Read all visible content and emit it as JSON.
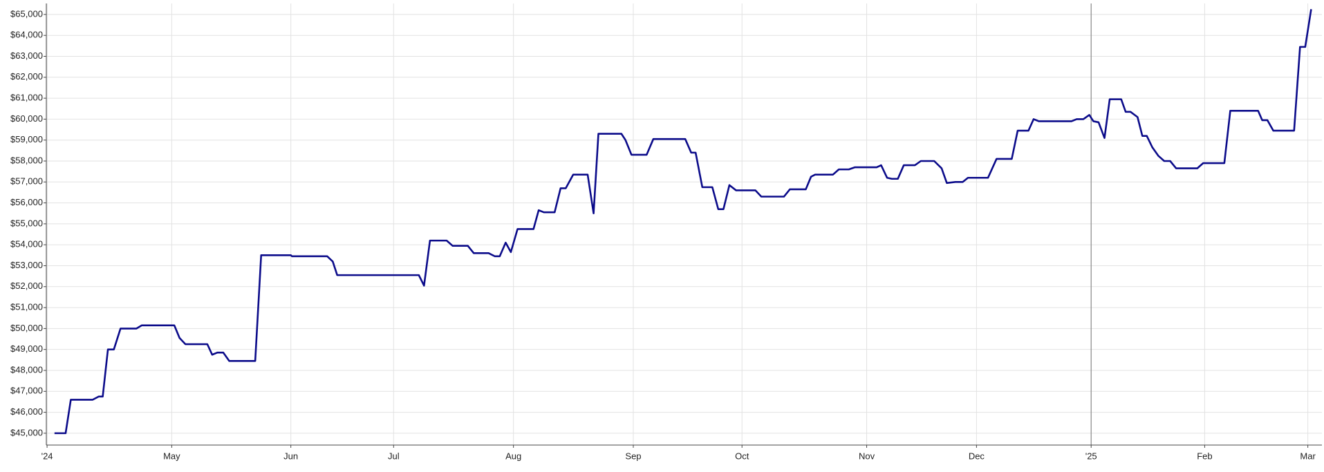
{
  "chart_data": {
    "type": "line",
    "color": "#0b0b8a",
    "grid": true,
    "xlim": [
      -0.2,
      343.6
    ],
    "xticks": [
      {
        "value": 0,
        "label": "'24"
      },
      {
        "value": 33.6,
        "label": "May"
      },
      {
        "value": 65.7,
        "label": "Jun"
      },
      {
        "value": 93.4,
        "label": "Jul"
      },
      {
        "value": 125.7,
        "label": "Aug"
      },
      {
        "value": 158,
        "label": "Sep"
      },
      {
        "value": 187.3,
        "label": "Oct"
      },
      {
        "value": 220.9,
        "label": "Nov"
      },
      {
        "value": 250.5,
        "label": "Dec"
      },
      {
        "value": 281.4,
        "label": "'25"
      },
      {
        "value": 312,
        "label": "Feb"
      },
      {
        "value": 339.8,
        "label": "Mar"
      }
    ],
    "vline": 281.4,
    "ylim": [
      44435,
      65525
    ],
    "yticks": [
      {
        "value": 45000,
        "label": "$45,000"
      },
      {
        "value": 46000,
        "label": "$46,000"
      },
      {
        "value": 47000,
        "label": "$47,000"
      },
      {
        "value": 48000,
        "label": "$48,000"
      },
      {
        "value": 49000,
        "label": "$49,000"
      },
      {
        "value": 50000,
        "label": "$50,000"
      },
      {
        "value": 51000,
        "label": "$51,000"
      },
      {
        "value": 52000,
        "label": "$52,000"
      },
      {
        "value": 53000,
        "label": "$53,000"
      },
      {
        "value": 54000,
        "label": "$54,000"
      },
      {
        "value": 55000,
        "label": "$55,000"
      },
      {
        "value": 56000,
        "label": "$56,000"
      },
      {
        "value": 57000,
        "label": "$57,000"
      },
      {
        "value": 58000,
        "label": "$58,000"
      },
      {
        "value": 59000,
        "label": "$59,000"
      },
      {
        "value": 60000,
        "label": "$60,000"
      },
      {
        "value": 61000,
        "label": "$61,000"
      },
      {
        "value": 62000,
        "label": "$62,000"
      },
      {
        "value": 63000,
        "label": "$63,000"
      },
      {
        "value": 64000,
        "label": "$64,000"
      },
      {
        "value": 65000,
        "label": "$65,000"
      }
    ],
    "x": [
      2,
      5,
      6.4,
      12.3,
      13.9,
      15,
      16.4,
      18,
      19.8,
      24.1,
      25.5,
      34.3,
      35.7,
      37.3,
      43.2,
      44.5,
      45.9,
      47.5,
      49.1,
      56.1,
      57.7,
      65.7,
      66,
      75.5,
      77,
      78.2,
      100.2,
      101.6,
      103.2,
      107.7,
      109.3,
      113.4,
      115,
      119,
      120.7,
      122,
      123.6,
      125,
      126.8,
      131.1,
      132.5,
      133.9,
      136.8,
      138.4,
      139.8,
      141.8,
      145.7,
      147.3,
      148.6,
      154.8,
      155.9,
      157.5,
      161.6,
      163.4,
      172,
      173.6,
      174.8,
      176.6,
      179.3,
      180.9,
      182.3,
      183.9,
      185.7,
      190.9,
      192.5,
      198.6,
      200.2,
      204.5,
      205.9,
      207,
      211.8,
      213.4,
      216.1,
      217.7,
      223.6,
      224.8,
      226.4,
      227.7,
      229.3,
      230.9,
      233.9,
      235.5,
      239.1,
      241.1,
      242.5,
      244.8,
      246.8,
      248.2,
      253.6,
      255.9,
      260,
      261.6,
      264.5,
      265.9,
      267.3,
      276.1,
      277.5,
      279.3,
      280.9,
      282,
      283.4,
      285,
      286.4,
      289.5,
      290.7,
      292,
      293.9,
      295.2,
      296.4,
      297.9,
      299.5,
      301.1,
      302.7,
      304.3,
      310,
      311.6,
      317.3,
      318.9,
      326.4,
      327.5,
      328.9,
      330.5,
      336.1,
      337.7,
      339.1,
      340.7
    ],
    "values": [
      45000,
      45000,
      46600,
      46600,
      46750,
      46750,
      49000,
      49000,
      50000,
      50000,
      50150,
      50150,
      49550,
      49250,
      49250,
      48750,
      48850,
      48850,
      48450,
      48450,
      53500,
      53500,
      53450,
      53450,
      53200,
      52550,
      52550,
      52050,
      54200,
      54200,
      53950,
      53950,
      53600,
      53600,
      53450,
      53450,
      54100,
      53650,
      54750,
      54750,
      55650,
      55550,
      55550,
      56700,
      56700,
      57350,
      57350,
      55500,
      59300,
      59300,
      59000,
      58300,
      58300,
      59050,
      59050,
      58400,
      58400,
      56750,
      56750,
      55700,
      55700,
      56850,
      56600,
      56600,
      56300,
      56300,
      56650,
      56650,
      57250,
      57350,
      57350,
      57600,
      57600,
      57700,
      57700,
      57800,
      57200,
      57150,
      57150,
      57800,
      57800,
      58000,
      58000,
      57650,
      56950,
      57000,
      57000,
      57200,
      57200,
      58100,
      58100,
      59450,
      59450,
      60000,
      59900,
      59900,
      60000,
      60000,
      60200,
      59900,
      59850,
      59100,
      60950,
      60950,
      60350,
      60350,
      60100,
      59200,
      59200,
      58650,
      58250,
      58000,
      58000,
      57650,
      57650,
      57900,
      57900,
      60400,
      60400,
      59950,
      59950,
      59450,
      59450,
      63450,
      63450,
      65250
    ]
  }
}
